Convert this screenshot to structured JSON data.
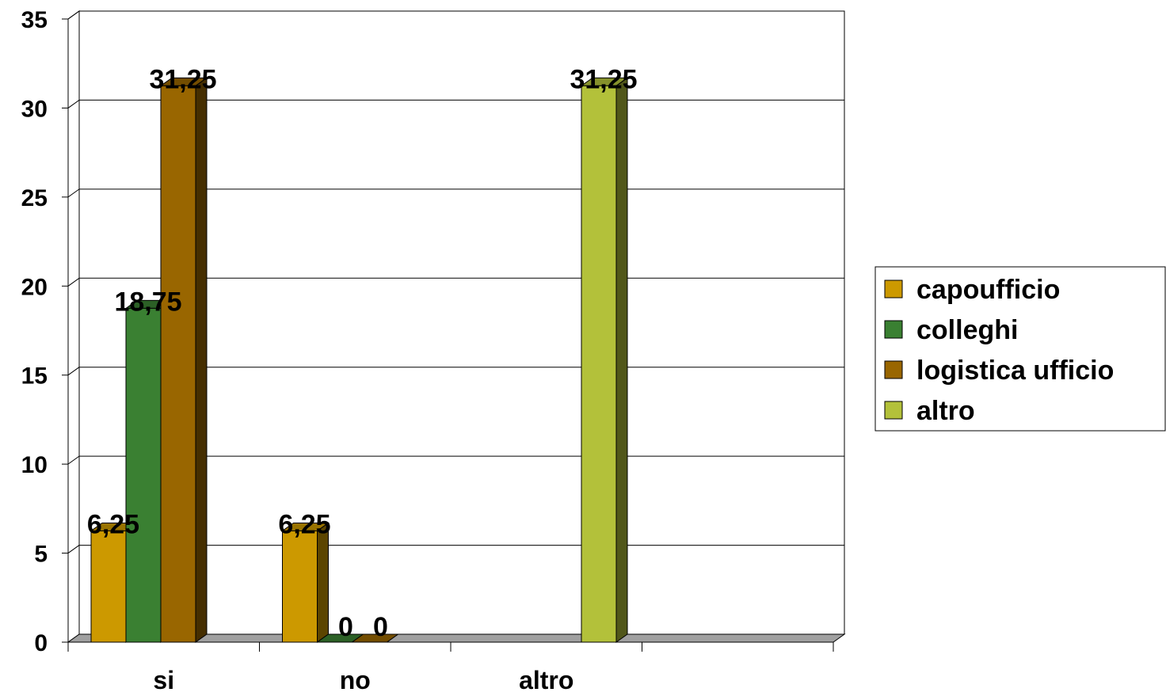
{
  "chart_data": {
    "type": "bar",
    "categories": [
      "si",
      "no",
      "altro"
    ],
    "series": [
      {
        "name": "capoufficio",
        "values": [
          6.25,
          6.25,
          null
        ],
        "color": "#CC9900"
      },
      {
        "name": "colleghi",
        "values": [
          18.75,
          0,
          null
        ],
        "color": "#3A8032"
      },
      {
        "name": "logistica ufficio",
        "values": [
          31.25,
          0,
          null
        ],
        "color": "#996600"
      },
      {
        "name": "altro",
        "values": [
          null,
          null,
          31.25
        ],
        "color": "#B3C13A"
      }
    ],
    "data_labels": [
      {
        "series": 0,
        "category": 0,
        "text": "6,25"
      },
      {
        "series": 1,
        "category": 0,
        "text": "18,75"
      },
      {
        "series": 2,
        "category": 0,
        "text": "31,25"
      },
      {
        "series": 0,
        "category": 1,
        "text": "6,25"
      },
      {
        "series": 1,
        "category": 1,
        "text": "0"
      },
      {
        "series": 2,
        "category": 1,
        "text": "0"
      },
      {
        "series": 3,
        "category": 2,
        "text": "31,25"
      }
    ],
    "yticks": [
      0,
      5,
      10,
      15,
      20,
      25,
      30,
      35
    ],
    "ylim": [
      0,
      35
    ],
    "title": "",
    "xlabel": "",
    "ylabel": "",
    "grid": true,
    "legend_position": "right",
    "style": "3d-column"
  }
}
